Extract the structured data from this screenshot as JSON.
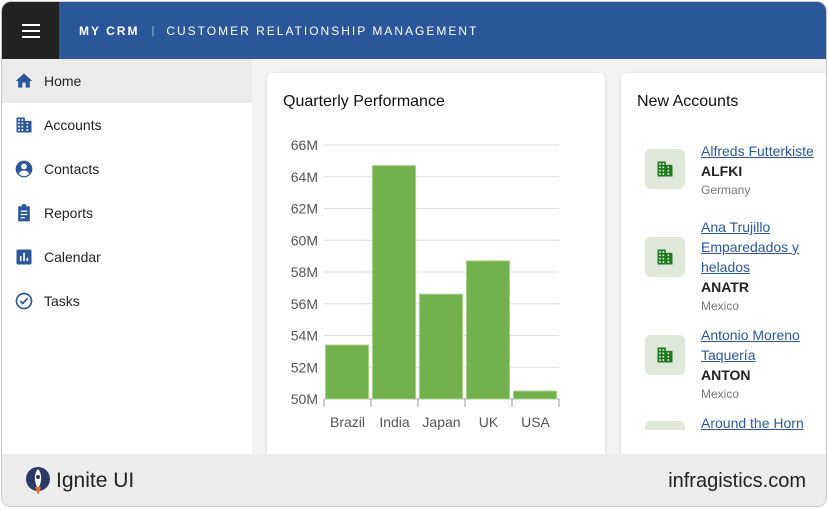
{
  "header": {
    "brand": "MY CRM",
    "separator": "|",
    "subtitle": "CUSTOMER RELATIONSHIP MANAGEMENT"
  },
  "sidebar": {
    "items": [
      {
        "label": "Home",
        "icon": "home-icon",
        "active": true
      },
      {
        "label": "Accounts",
        "icon": "building-icon"
      },
      {
        "label": "Contacts",
        "icon": "person-icon"
      },
      {
        "label": "Reports",
        "icon": "clipboard-icon"
      },
      {
        "label": "Calendar",
        "icon": "chart-icon"
      },
      {
        "label": "Tasks",
        "icon": "check-circle-icon"
      }
    ]
  },
  "performance": {
    "title": "Quarterly Performance"
  },
  "chart_data": {
    "type": "bar",
    "categories": [
      "Brazil",
      "India",
      "Japan",
      "UK",
      "USA"
    ],
    "values": [
      53.4,
      64.7,
      56.6,
      58.7,
      50.5
    ],
    "ylim": [
      50,
      66
    ],
    "yticks": [
      "50M",
      "52M",
      "54M",
      "56M",
      "58M",
      "60M",
      "62M",
      "64M",
      "66M"
    ],
    "grid": true,
    "color": "#72b14b"
  },
  "accounts": {
    "title": "New Accounts",
    "items": [
      {
        "name": "Alfreds Futterkiste",
        "code": "ALFKI",
        "country": "Germany"
      },
      {
        "name": "Ana Trujillo Emparedados y helados",
        "code": "ANATR",
        "country": "Mexico"
      },
      {
        "name": "Antonio Moreno Taquería",
        "code": "ANTON",
        "country": "Mexico"
      },
      {
        "name": "Around the Horn",
        "code": "",
        "country": ""
      }
    ]
  },
  "footer": {
    "logo": "Ignite UI",
    "site": "infragistics.com"
  }
}
